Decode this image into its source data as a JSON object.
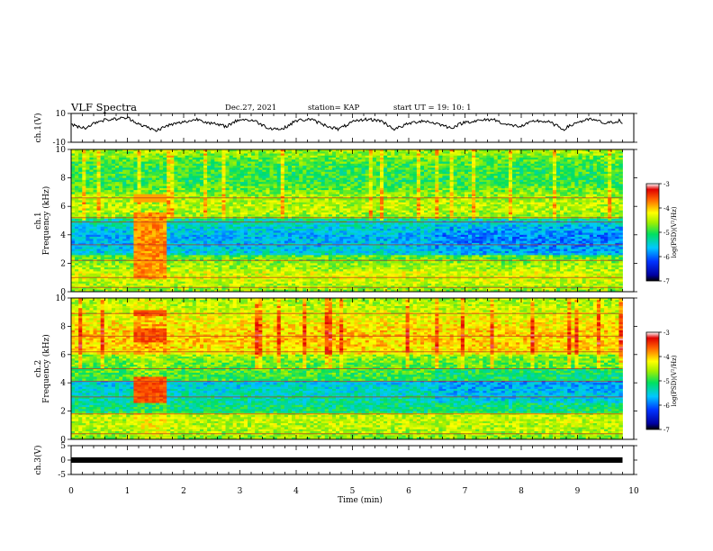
{
  "header": {
    "title": "VLF Spectra",
    "date": "Dec.27, 2021",
    "station": "station= KAP",
    "start": "start UT =   19: 10: 1"
  },
  "chart_data": {
    "type": "heatmap",
    "x_axis": {
      "label": "Time (min)",
      "range": [
        0,
        10
      ],
      "ticks": [
        "0",
        "1",
        "2",
        "3",
        "4",
        "5",
        "6",
        "7",
        "8",
        "9",
        "10"
      ]
    },
    "panels": [
      {
        "id": "ch1-waveform",
        "type": "line",
        "ylabel": "ch.1(V)",
        "ylim": [
          -10,
          10
        ],
        "yticks": [
          "10",
          "-10"
        ],
        "description_values": "oscillating waveform roughly between -3 and 7 V, period about 0.75 min",
        "approx_series": {
          "x": [
            0,
            0.25,
            0.5,
            0.75,
            1,
            1.25,
            1.5,
            1.75,
            2,
            2.25,
            2.5,
            2.75,
            3,
            3.25,
            3.5,
            3.75,
            4,
            4.25,
            4.5,
            4.75,
            5,
            5.25,
            5.5,
            5.75,
            6,
            6.25,
            6.5,
            6.75,
            7,
            7.25,
            7.5,
            7.75,
            8,
            8.25,
            8.5,
            8.75,
            9,
            9.25,
            9.5,
            9.75,
            9.8
          ],
          "y": [
            2,
            0,
            5,
            6,
            7,
            2,
            -2,
            2,
            4,
            6,
            3,
            1,
            6,
            5,
            0,
            -1,
            5,
            6,
            2,
            -1,
            4,
            6,
            5,
            -1,
            3,
            5,
            3,
            0,
            4,
            5,
            6,
            2,
            1,
            5,
            4,
            -1,
            4,
            6,
            3,
            5,
            3
          ]
        }
      },
      {
        "id": "ch1-spectrogram",
        "type": "heatmap",
        "ylabel": "ch.1\nFrequency (kHz)",
        "ylim": [
          0,
          10
        ],
        "yticks": [
          "0",
          "2",
          "4",
          "6",
          "8",
          "10"
        ],
        "colorbar": {
          "label": "log(PSD)(V²/Hz)",
          "range": [
            -7,
            -3
          ],
          "ticks": [
            "-3",
            "-4",
            "-5",
            "-6",
            "-7"
          ]
        },
        "burst_interval_min": [
          1.1,
          1.72
        ]
      },
      {
        "id": "ch2-spectrogram",
        "type": "heatmap",
        "ylabel": "ch.2\nFrequency (kHz)",
        "ylim": [
          0,
          10
        ],
        "yticks": [
          "0",
          "2",
          "4",
          "6",
          "8",
          "10"
        ],
        "colorbar": {
          "label": "log(PSD)(V²/Hz)",
          "range": [
            -7,
            -3
          ],
          "ticks": [
            "-3",
            "-4",
            "-5",
            "-6",
            "-7"
          ]
        },
        "burst_interval_min": [
          1.1,
          1.72
        ]
      },
      {
        "id": "ch3-waveform",
        "type": "line",
        "ylabel": "ch.3(V)",
        "ylim": [
          -5,
          5
        ],
        "yticks": [
          "5",
          "0",
          "-5"
        ],
        "approx_series": {
          "x": [
            0,
            9.8
          ],
          "y": [
            0,
            0
          ]
        }
      }
    ],
    "data_end_min": 9.8
  }
}
